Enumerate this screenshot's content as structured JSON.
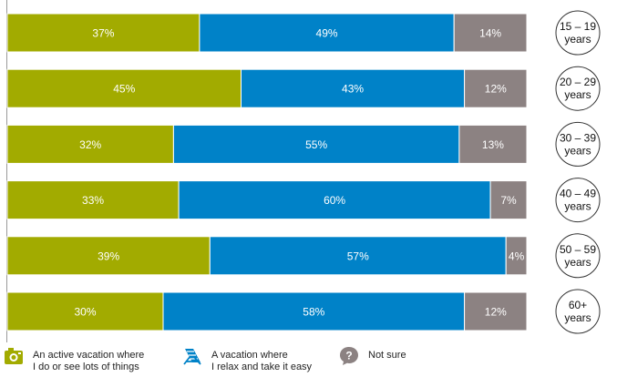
{
  "chart_data": {
    "type": "bar",
    "orientation": "horizontal",
    "stacked": true,
    "categories": [
      "15 – 19 years",
      "20 – 29 years",
      "30 – 39 years",
      "40 – 49 years",
      "50 – 59 years",
      "60+ years"
    ],
    "category_lines": [
      [
        "15 – 19",
        "years"
      ],
      [
        "20 – 29",
        "years"
      ],
      [
        "30 – 39",
        "years"
      ],
      [
        "40 – 49",
        "years"
      ],
      [
        "50 – 59",
        "years"
      ],
      [
        "60+",
        "years"
      ]
    ],
    "series": [
      {
        "name": "An active vacation where I do or see lots of things",
        "color": "#a2ab00",
        "values": [
          37,
          45,
          32,
          33,
          39,
          30
        ]
      },
      {
        "name": "A vacation where I relax and take it easy",
        "color": "#0082c8",
        "values": [
          49,
          43,
          55,
          60,
          57,
          58
        ]
      },
      {
        "name": "Not sure",
        "color": "#8c8282",
        "values": [
          14,
          12,
          13,
          7,
          4,
          12
        ]
      }
    ],
    "value_format": "{v}%",
    "legend_position": "bottom",
    "grid": false
  },
  "legend": [
    {
      "icon": "camera-icon",
      "text": "An active vacation where\nI do or see lots of things",
      "color": "#a2ab00"
    },
    {
      "icon": "beach-chair-icon",
      "text": "A vacation where\nI relax and take it easy",
      "color": "#0082c8"
    },
    {
      "icon": "question-icon",
      "text": "Not sure",
      "color": "#8c8282"
    }
  ]
}
